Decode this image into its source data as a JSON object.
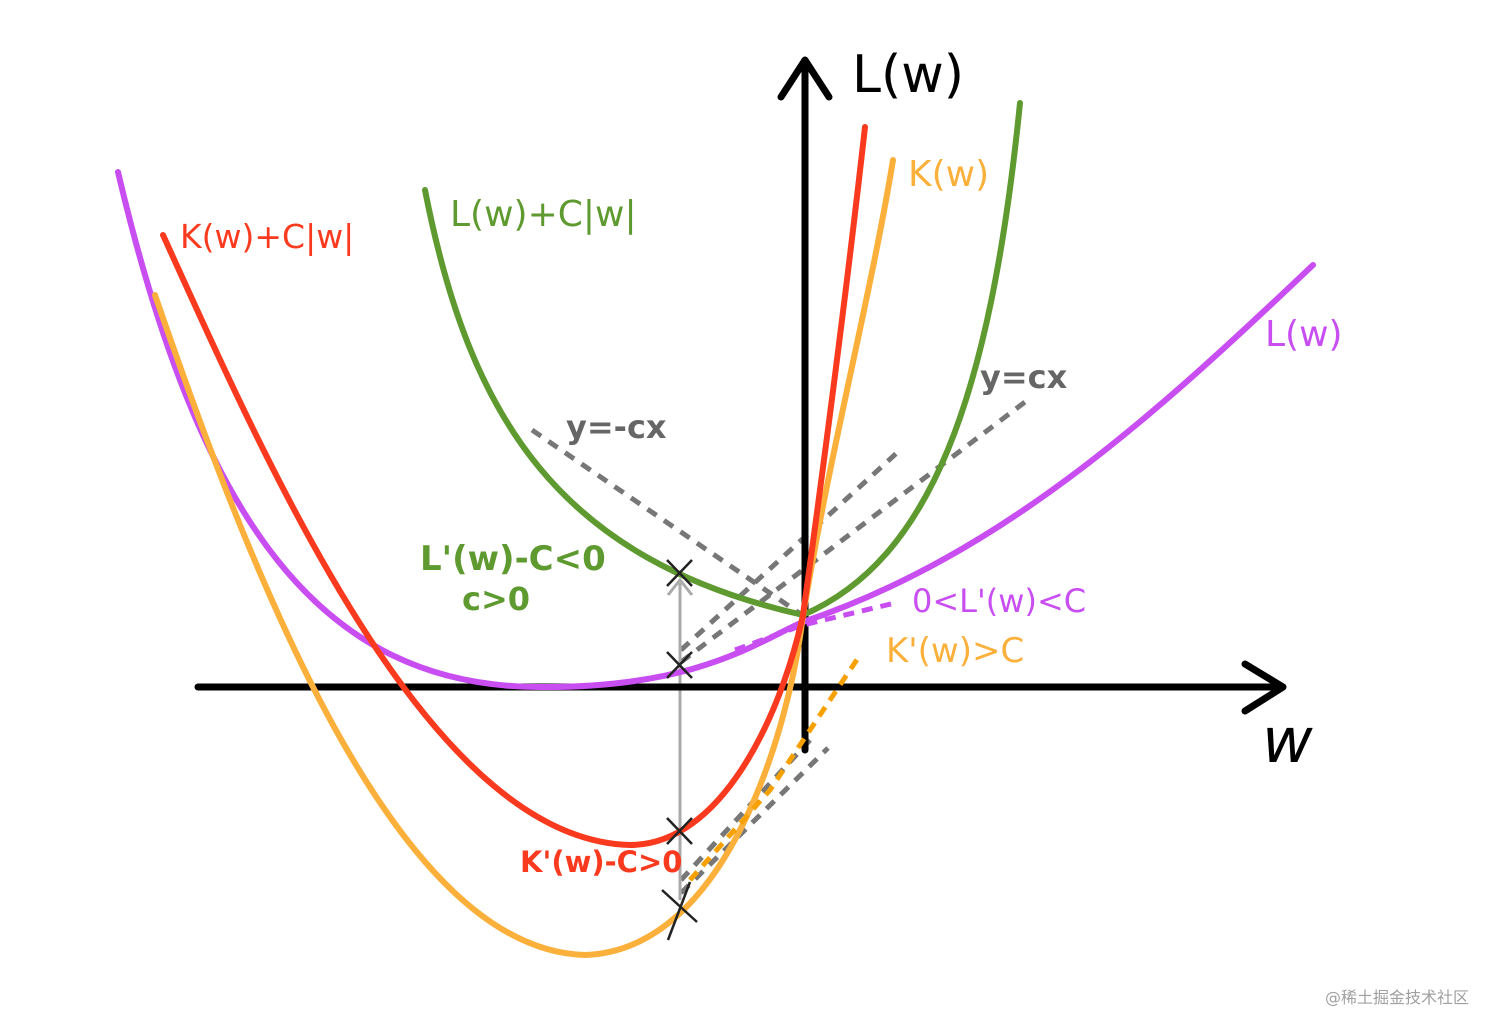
{
  "colors": {
    "axis": "#000000",
    "L": "#c84ef2",
    "K": "#fbb03b",
    "L_plus": "#5e9a30",
    "K_plus": "#fa3a1f",
    "dashed_gray": "#777777",
    "annot_gray": "#666666",
    "marker_line": "#aaaaaa"
  },
  "axes": {
    "y_label": "L(w)",
    "x_label": "w"
  },
  "curve_labels": {
    "L": "L(w)",
    "K": "K(w)",
    "L_plus": "L(w)+C|w|",
    "K_plus": "K(w)+C|w|"
  },
  "line_labels": {
    "pos": "y=cx",
    "neg": "y=-cx"
  },
  "annotations": {
    "green_1": "L'(w)-C<0",
    "green_2": "c>0",
    "purple": "0<L'(w)<C",
    "orange": "K'(w)>C",
    "red": "K'(w)-C>0"
  },
  "watermark": "@稀土掘金技术社区"
}
